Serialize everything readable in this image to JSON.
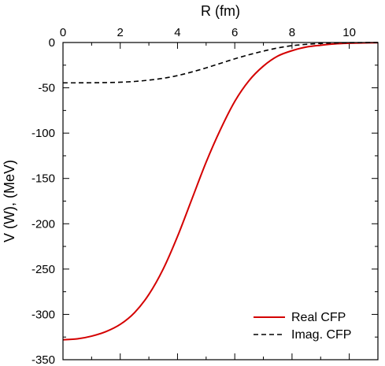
{
  "chart_data": {
    "type": "line",
    "xlabel": "R (fm)",
    "ylabel": "V (W), (MeV)",
    "xlim": [
      0,
      11
    ],
    "ylim": [
      -350,
      0
    ],
    "x_ticks": [
      "0",
      "2",
      "4",
      "6",
      "8",
      "10"
    ],
    "y_ticks": [
      "0",
      "-50",
      "-100",
      "-150",
      "-200",
      "-250",
      "-300",
      "-350"
    ],
    "x_axis_position": "top",
    "grid": false,
    "legend_position": "bottom-right",
    "series": [
      {
        "name": "Real CFP",
        "color": "#d40000",
        "line_style": "solid",
        "x": [
          0,
          0.5,
          1,
          1.5,
          2,
          2.5,
          3,
          3.5,
          4,
          4.5,
          5,
          5.5,
          6,
          6.5,
          7,
          7.5,
          8,
          8.5,
          9,
          9.5,
          10,
          10.5,
          11
        ],
        "y": [
          -328,
          -327,
          -324,
          -319,
          -311,
          -298,
          -278,
          -250,
          -214,
          -173,
          -132,
          -96,
          -65,
          -42,
          -26,
          -15,
          -9,
          -5,
          -3,
          -1.5,
          -0.8,
          -0.4,
          -0.2
        ]
      },
      {
        "name": "Imag. CFP",
        "color": "#000000",
        "line_style": "dashed",
        "x": [
          0,
          0.5,
          1,
          1.5,
          2,
          2.5,
          3,
          3.5,
          4,
          4.5,
          5,
          5.5,
          6,
          6.5,
          7,
          7.5,
          8,
          8.5,
          9,
          9.5,
          10,
          10.5,
          11
        ],
        "y": [
          -44.5,
          -44.5,
          -44.4,
          -44.2,
          -43.8,
          -43,
          -41.5,
          -39.5,
          -36.5,
          -32.5,
          -28,
          -23,
          -18,
          -13.5,
          -9.5,
          -6,
          -3.5,
          -2,
          -1,
          -0.5,
          -0.2,
          -0.1,
          0
        ]
      }
    ]
  }
}
